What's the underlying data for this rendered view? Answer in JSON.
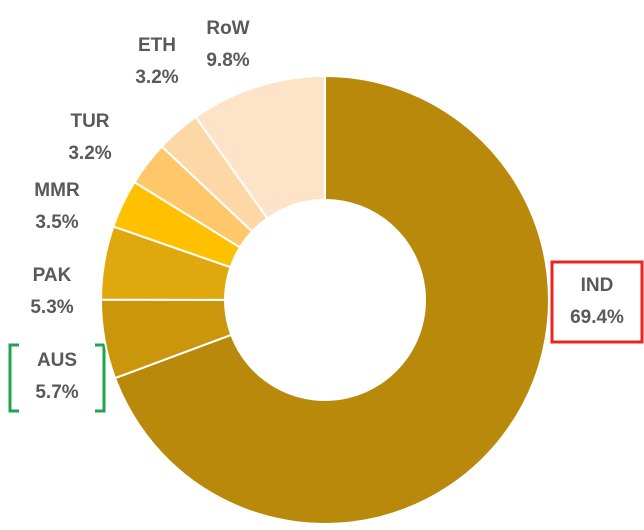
{
  "chart_data": {
    "type": "donut",
    "categories": [
      "IND",
      "AUS",
      "PAK",
      "MMR",
      "TUR",
      "ETH",
      "RoW"
    ],
    "values": [
      69.4,
      5.7,
      5.3,
      3.5,
      3.2,
      3.2,
      9.8
    ],
    "value_labels": [
      "69.4%",
      "5.7%",
      "5.3%",
      "3.5%",
      "3.2%",
      "3.2%",
      "9.8%"
    ],
    "colors": [
      "#B8890A",
      "#C9960C",
      "#DFA90E",
      "#FFC000",
      "#FDC76A",
      "#FDD7A6",
      "#FDE3C8"
    ]
  }
}
